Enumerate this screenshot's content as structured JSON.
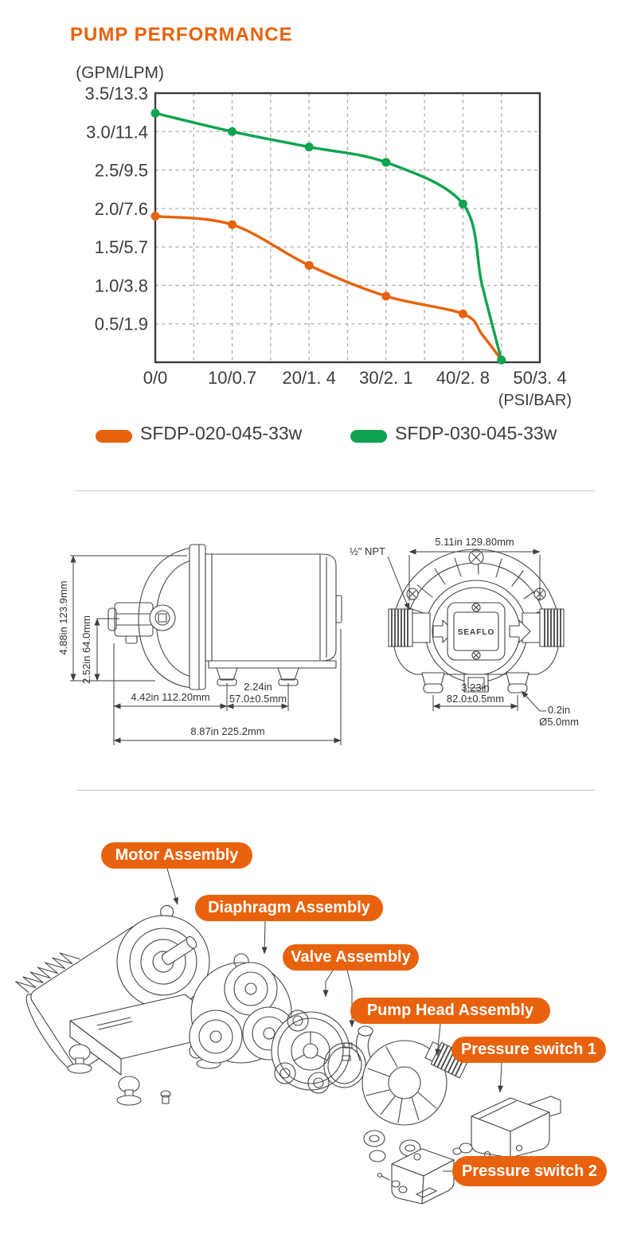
{
  "title": "PUMP PERFORMANCE",
  "chart_data": {
    "type": "line",
    "title": "PUMP PERFORMANCE",
    "y_axis_label": "(GPM/LPM)",
    "x_axis_label": "(PSI/BAR)",
    "y_ticks": [
      "3.5/13.3",
      "3.0/11.4",
      "2.5/9.5",
      "2.0/7.6",
      "1.5/5.7",
      "1.0/3.8",
      "0.5/1.9"
    ],
    "y_tick_values": [
      3.5,
      3.0,
      2.5,
      2.0,
      1.5,
      1.0,
      0.5
    ],
    "x_ticks": [
      "0/0",
      "10/0.7",
      "20/1. 4",
      "30/2. 1",
      "40/2. 8",
      "50/3. 4"
    ],
    "x_tick_values": [
      0,
      10,
      20,
      30,
      40,
      50
    ],
    "x_range": [
      0,
      50
    ],
    "y_range": [
      0,
      3.5
    ],
    "grid": "dashed gray, vertical every 5 PSI, horizontal every 0.5 GPM",
    "legend_position": "below chart",
    "series": [
      {
        "name": "SFDP-020-045-33w",
        "color": "#E8620D",
        "points": [
          [
            0,
            1.9
          ],
          [
            10,
            1.79
          ],
          [
            20,
            1.26
          ],
          [
            30,
            0.86
          ],
          [
            40,
            0.63
          ],
          [
            42.5,
            0.36
          ],
          [
            45,
            0.03
          ]
        ],
        "marker_xs": [
          0,
          10,
          20,
          30,
          40
        ]
      },
      {
        "name": "SFDP-030-045-33w",
        "color": "#0DA350",
        "points": [
          [
            0,
            3.24
          ],
          [
            10,
            3.0
          ],
          [
            20,
            2.8
          ],
          [
            30,
            2.6
          ],
          [
            40,
            2.06
          ],
          [
            42.5,
            1.0
          ],
          [
            45,
            0.03
          ]
        ],
        "marker_xs": [
          0,
          10,
          20,
          30,
          40,
          45
        ]
      }
    ]
  },
  "drawings": {
    "side_view": {
      "dim_height": "4.88in  123.9mm",
      "dim_port_height": "2.52in  64.0mm",
      "dim_foot_offset": "4.42in  112.20mm",
      "dim_foot_spacing_in": "2.24in",
      "dim_foot_spacing_mm": "57.0±0.5mm",
      "dim_overall": "8.87in  225.2mm"
    },
    "front_view": {
      "port_label": "½\" NPT",
      "dim_width": "5.11in  129.80mm",
      "dim_feet_in": "3.23in",
      "dim_feet_mm": "82.0±0.5mm",
      "dim_hole_in": "0.2in",
      "dim_hole_mm": "Ø5.0mm",
      "brand": "SEAFLO"
    }
  },
  "exploded": {
    "labels": [
      {
        "text": "Motor Assembly"
      },
      {
        "text": "Diaphragm Assembly"
      },
      {
        "text": "Valve Assembly"
      },
      {
        "text": "Pump Head Assembly"
      },
      {
        "text": "Pressure switch 1"
      },
      {
        "text": "Pressure switch 2"
      }
    ]
  },
  "colors": {
    "accent_orange": "#E8620D",
    "series_green": "#0DA350",
    "text_dark": "#3F3B3A",
    "grid_gray": "#ABABAB",
    "drawing_line": "#454545",
    "divider": "#C9C9C9"
  }
}
